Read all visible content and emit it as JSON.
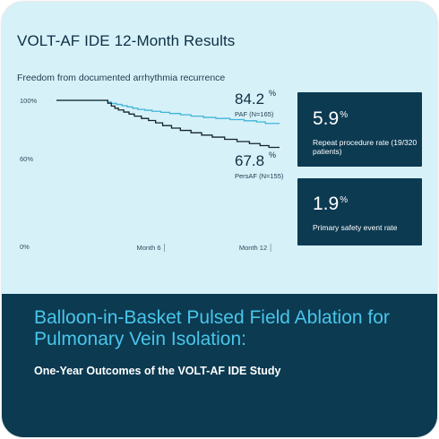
{
  "header": {
    "title": "VOLT-AF IDE 12-Month Results",
    "subtitle": "Freedom from documented arrhythmia recurrence"
  },
  "chart_data": {
    "type": "line",
    "title": "VOLT-AF IDE 12-Month Results",
    "ylabel": "",
    "xlabel": "",
    "ylim": [
      0,
      100
    ],
    "xlim": [
      0,
      12.6
    ],
    "y_ticks": [
      "100%",
      "60%",
      "0%"
    ],
    "x_ticks": [
      "Month 6",
      "Month 12"
    ],
    "x_tick_values": [
      6,
      12
    ],
    "series": [
      {
        "name": "PAF (N=165)",
        "color": "#3fb4d8",
        "final_value": "84.2",
        "final_suffix": "%",
        "x": [
          0,
          2.7,
          2.9,
          3.1,
          3.4,
          3.7,
          4.0,
          4.3,
          4.6,
          5.0,
          5.4,
          5.9,
          6.4,
          7.0,
          7.6,
          8.3,
          9.0,
          9.8,
          10.6,
          11.3,
          11.8,
          12.6
        ],
        "y": [
          100,
          100,
          98.8,
          97.9,
          97.2,
          96.3,
          95.5,
          94.6,
          93.8,
          93.2,
          92.5,
          91.8,
          91.0,
          90.1,
          89.2,
          88.3,
          87.6,
          86.8,
          86.0,
          85.2,
          84.2,
          84.2
        ]
      },
      {
        "name": "PersAF (N=155)",
        "color": "#14232b",
        "final_value": "67.8",
        "final_suffix": "%",
        "x": [
          0,
          2.7,
          2.9,
          3.1,
          3.3,
          3.5,
          3.8,
          4.1,
          4.4,
          4.8,
          5.2,
          5.6,
          6.0,
          6.5,
          7.0,
          7.6,
          8.2,
          8.8,
          9.5,
          10.2,
          10.9,
          11.5,
          12.0,
          12.6
        ],
        "y": [
          100,
          100,
          98.0,
          96.1,
          94.6,
          93.4,
          92.0,
          90.6,
          89.2,
          87.6,
          86.2,
          84.6,
          82.7,
          81.0,
          79.4,
          77.8,
          76.2,
          74.8,
          73.3,
          71.8,
          70.4,
          69.0,
          67.8,
          67.8
        ]
      }
    ]
  },
  "stats": [
    {
      "value": "5.9",
      "suffix": "%",
      "label": "Repeat procedure rate (19/320 patients)"
    },
    {
      "value": "1.9",
      "suffix": "%",
      "label": "Primary safety event rate"
    }
  ],
  "banner": {
    "title": "Balloon-in-Basket Pulsed Field Ablation for Pulmonary Vein Isolation:",
    "subtitle": "One-Year Outcomes of the VOLT-AF IDE Study"
  },
  "colors": {
    "card_bg": "#d7f1f9",
    "navy": "#0c3a51",
    "accent_cyan": "#48c6ea"
  }
}
